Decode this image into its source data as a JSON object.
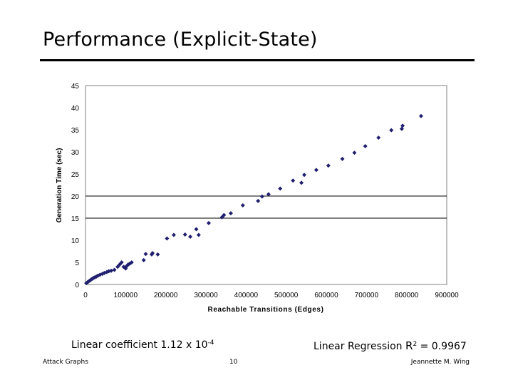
{
  "slide": {
    "title": "Performance (Explicit-State)",
    "caption_left_prefix": "Linear coefficient 1.12 x 10",
    "caption_left_exp": "-4",
    "caption_right_prefix": "Linear Regression ",
    "caption_right_r": "R",
    "caption_right_exp": "2",
    "caption_right_suffix": " = 0.9967",
    "footer_left": "Attack Graphs",
    "footer_center": "10",
    "footer_right": "Jeannette M. Wing"
  },
  "colors": {
    "marker": "#1f1f6e",
    "frame": "#808080",
    "gridline": "#000000"
  },
  "chart_data": {
    "type": "scatter",
    "title": "",
    "xlabel": "Reachable Transitions (Edges)",
    "ylabel": "Generation Time (sec)",
    "xlim": [
      0,
      900000
    ],
    "ylim": [
      0,
      45
    ],
    "x_ticks": [
      "0",
      "100000",
      "200000",
      "300000",
      "400000",
      "500000",
      "600000",
      "700000",
      "800000",
      "900000"
    ],
    "y_ticks": [
      "0",
      "5",
      "10",
      "15",
      "20",
      "25",
      "30",
      "35",
      "40",
      "45"
    ],
    "horizontal_gridlines": [
      15,
      20
    ],
    "series": [
      {
        "marker": "diamond",
        "x": [
          2000,
          5000,
          8000,
          11000,
          14000,
          17000,
          20000,
          23000,
          27000,
          31000,
          36000,
          42000,
          47000,
          53000,
          58000,
          64000,
          72000,
          80000,
          85000,
          90000,
          95000,
          100000,
          103000,
          106000,
          110000,
          115000,
          145000,
          150000,
          165000,
          167000,
          180000,
          203000,
          220000,
          248000,
          261000,
          276000,
          282000,
          307000,
          340000,
          345000,
          362000,
          392000,
          430000,
          440000,
          456000,
          485000,
          517000,
          538000,
          545000,
          575000,
          605000,
          640000,
          670000,
          697000,
          730000,
          762000,
          788000,
          790000,
          836000
        ],
        "y": [
          0.3,
          0.5,
          0.7,
          0.9,
          1.1,
          1.3,
          1.5,
          1.6,
          1.8,
          2.0,
          2.2,
          2.4,
          2.6,
          2.8,
          3.0,
          3.1,
          3.3,
          4.0,
          4.5,
          5.0,
          4.0,
          3.6,
          4.2,
          4.5,
          4.7,
          5.0,
          5.5,
          6.9,
          6.8,
          7.1,
          6.8,
          10.4,
          11.2,
          11.3,
          10.8,
          12.5,
          11.2,
          13.9,
          15.2,
          15.7,
          16.1,
          17.9,
          18.9,
          19.9,
          20.4,
          21.7,
          23.5,
          23.0,
          24.8,
          25.9,
          26.9,
          28.4,
          29.8,
          31.3,
          33.2,
          34.9,
          35.2,
          35.9,
          38.1
        ]
      }
    ],
    "grid": false,
    "legend": "none"
  }
}
